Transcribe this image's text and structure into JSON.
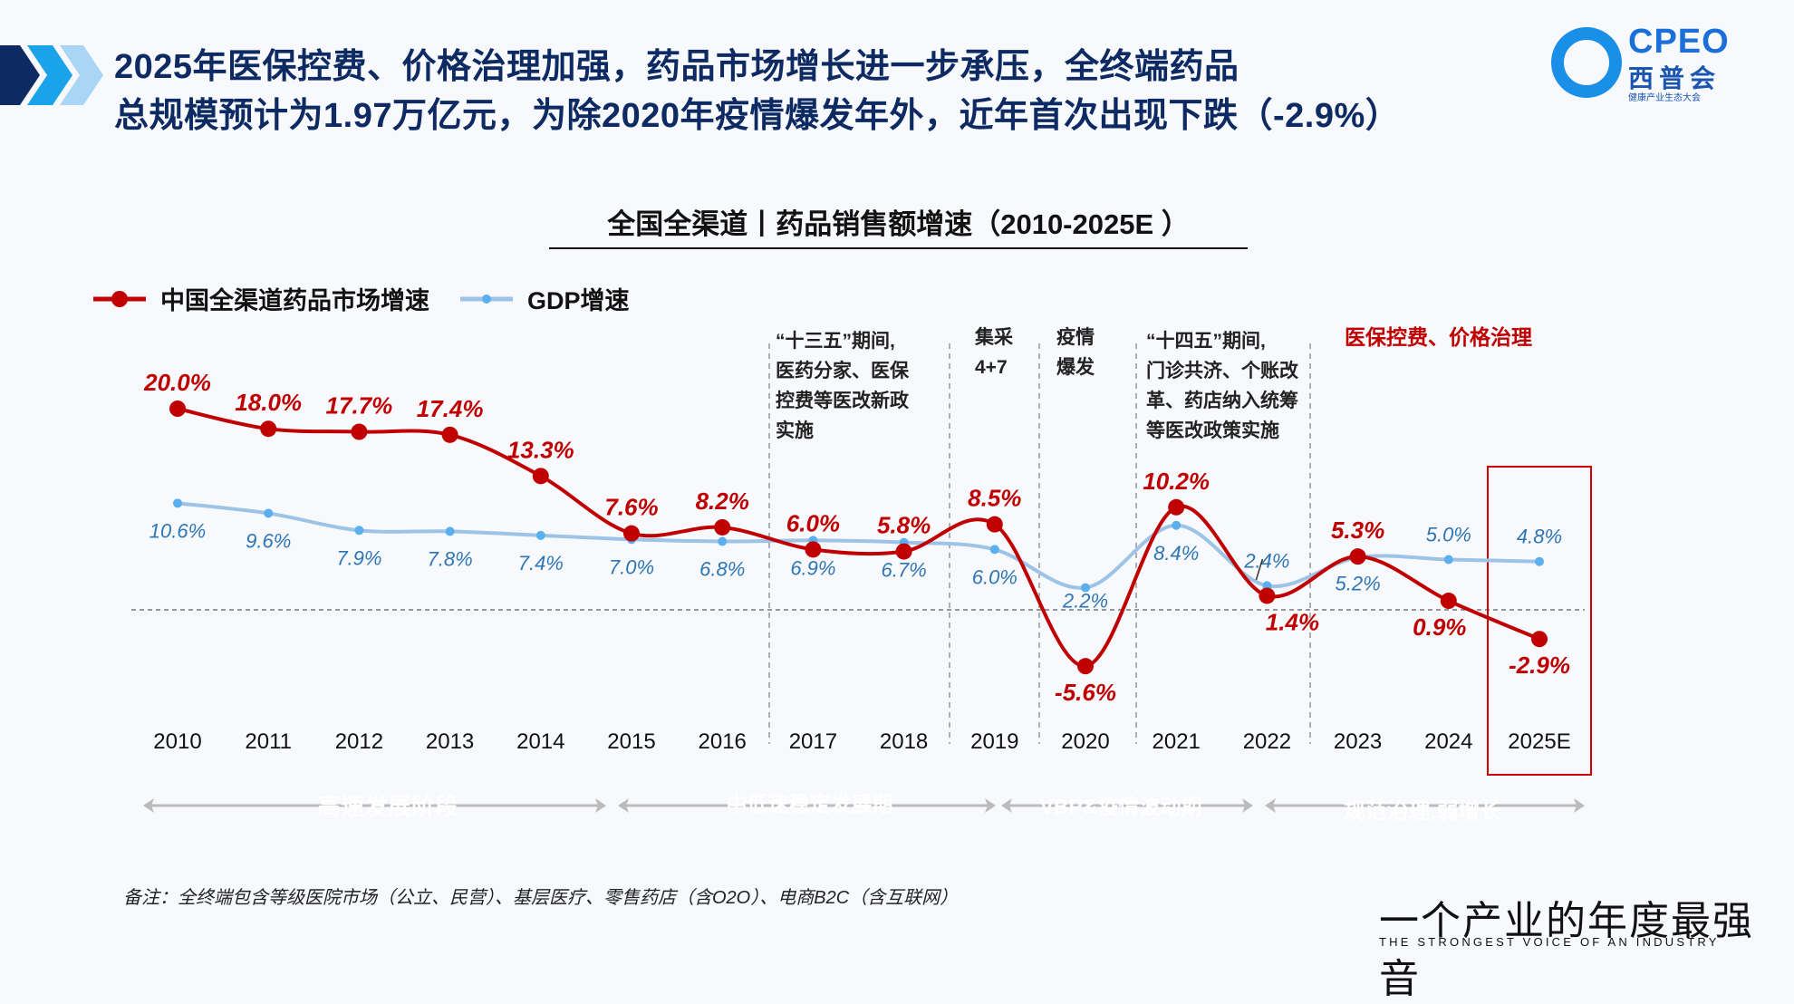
{
  "header": {
    "title_line1": "2025年医保控费、价格治理加强，药品市场增长进一步承压，全终端药品",
    "title_line2": "总规模预计为1.97万亿元，为除2020年疫情爆发年外，近年首次出现下跌（-2.9%）",
    "logo": {
      "brand": "CPEO",
      "name": "西普会",
      "tagline": "健康产业生态大会"
    }
  },
  "chart_data": {
    "type": "line",
    "title": "全国全渠道丨药品销售额增速（2010-2025E ）",
    "categories": [
      "2010",
      "2011",
      "2012",
      "2013",
      "2014",
      "2015",
      "2016",
      "2017",
      "2018",
      "2019",
      "2020",
      "2021",
      "2022",
      "2023",
      "2024",
      "2025E"
    ],
    "series": [
      {
        "name": "中国全渠道药品市场增速",
        "color": "#c00000",
        "values": [
          20.0,
          18.0,
          17.7,
          17.4,
          13.3,
          7.6,
          8.2,
          6.0,
          5.8,
          8.5,
          -5.6,
          10.2,
          1.4,
          5.3,
          0.9,
          -2.9
        ],
        "labels": [
          "20.0%",
          "18.0%",
          "17.7%",
          "17.4%",
          "13.3%",
          "7.6%",
          "8.2%",
          "6.0%",
          "5.8%",
          "8.5%",
          "-5.6%",
          "10.2%",
          "1.4%",
          "5.3%",
          "0.9%",
          "-2.9%"
        ]
      },
      {
        "name": "GDP增速",
        "color": "#9dc3e6",
        "label_color": "#2e75b6",
        "values": [
          10.6,
          9.6,
          7.9,
          7.8,
          7.4,
          7.0,
          6.8,
          6.9,
          6.7,
          6.0,
          2.2,
          8.4,
          2.4,
          5.2,
          5.0,
          4.8
        ],
        "labels": [
          "10.6%",
          "9.6%",
          "7.9%",
          "7.8%",
          "7.4%",
          "7.0%",
          "6.8%",
          "6.9%",
          "6.7%",
          "6.0%",
          "2.2%",
          "8.4%",
          "2.4%",
          "5.2%",
          "5.0%",
          "4.8%"
        ]
      }
    ],
    "ylim": [
      -8,
      22
    ],
    "zero_line": "dashed",
    "legend_position": "top-left",
    "highlight_category": "2025E",
    "annotations": [
      {
        "lines": [
          "“十三五”期间,",
          "医药分家、医保",
          "控费等医改新政",
          "实施"
        ]
      },
      {
        "lines": [
          "集采",
          "4+7"
        ]
      },
      {
        "lines": [
          "疫情",
          "爆发"
        ]
      },
      {
        "lines": [
          "“十四五”期间,",
          "门诊共济、个账改",
          "革、药店纳入统筹",
          "等医改政策实施"
        ]
      },
      {
        "lines": [
          "医保控费、价格治理"
        ],
        "color": "#c00000"
      }
    ],
    "phases": [
      {
        "label": "高速发展阶段",
        "color": "#4ea72a"
      },
      {
        "label": "中低速稳定发展期",
        "color": "#b3b3b3"
      },
      {
        "label": "VBP&疫情波动期",
        "color": "#6fa8f5"
      },
      {
        "label": "规范治理,弱增长",
        "color": "#c00000"
      }
    ]
  },
  "footer": {
    "note": "备注：全终端包含等级医院市场（公立、民营）、基层医疗、零售药店（含O2O）、电商B2C（含互联网）",
    "slogan": "一个产业的年度最强音",
    "slogan_en": "THE STRONGEST VOICE OF AN INDUSTRY"
  }
}
